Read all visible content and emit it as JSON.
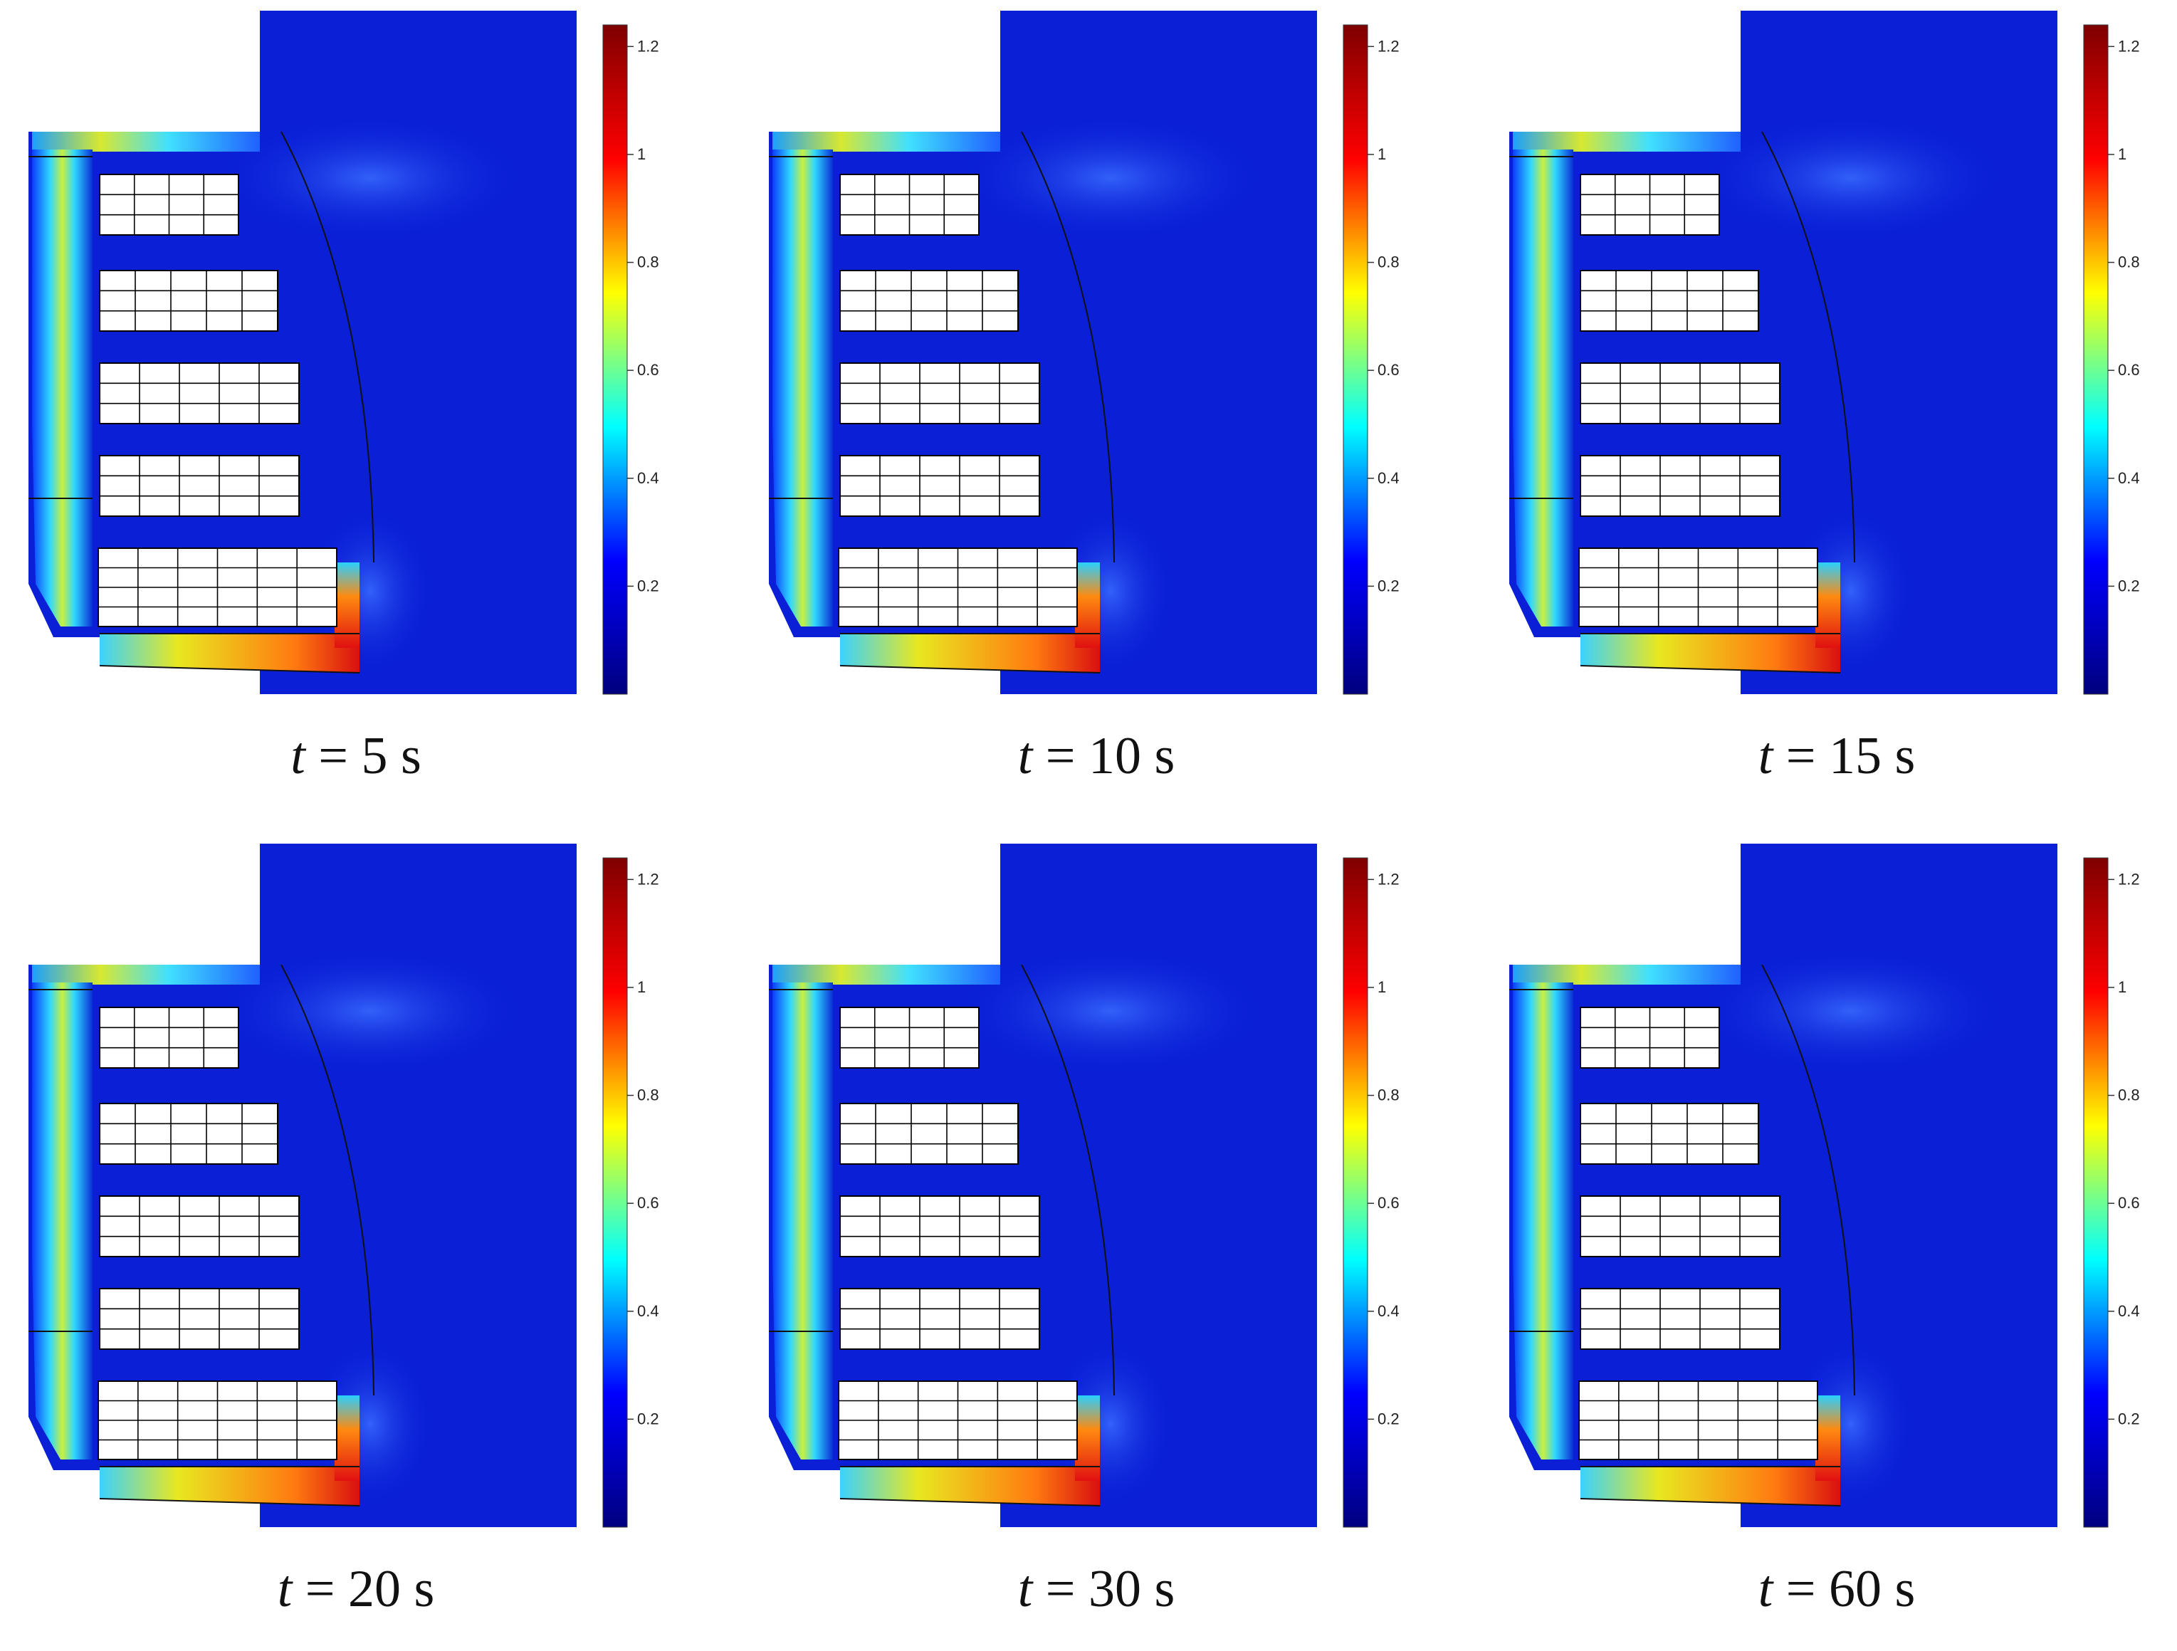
{
  "figure": {
    "panels": [
      {
        "time_var": "t",
        "time_value": "= 5 s"
      },
      {
        "time_var": "t",
        "time_value": "= 10 s"
      },
      {
        "time_var": "t",
        "time_value": "= 15 s"
      },
      {
        "time_var": "t",
        "time_value": "= 20 s"
      },
      {
        "time_var": "t",
        "time_value": "= 30 s"
      },
      {
        "time_var": "t",
        "time_value": "= 60 s"
      }
    ],
    "colorbar": {
      "ticks": [
        "0.2",
        "0.4",
        "0.6",
        "0.8",
        "1",
        "1.2"
      ],
      "colormap": "jet",
      "colors": [
        "#00007f",
        "#0000ff",
        "#00ffff",
        "#ffff00",
        "#ff0000",
        "#7f0000"
      ]
    },
    "colors": {
      "background_field": "#0a1fd6",
      "obstacle_fill": "#ffffff",
      "grid_lines": "#000000"
    }
  }
}
